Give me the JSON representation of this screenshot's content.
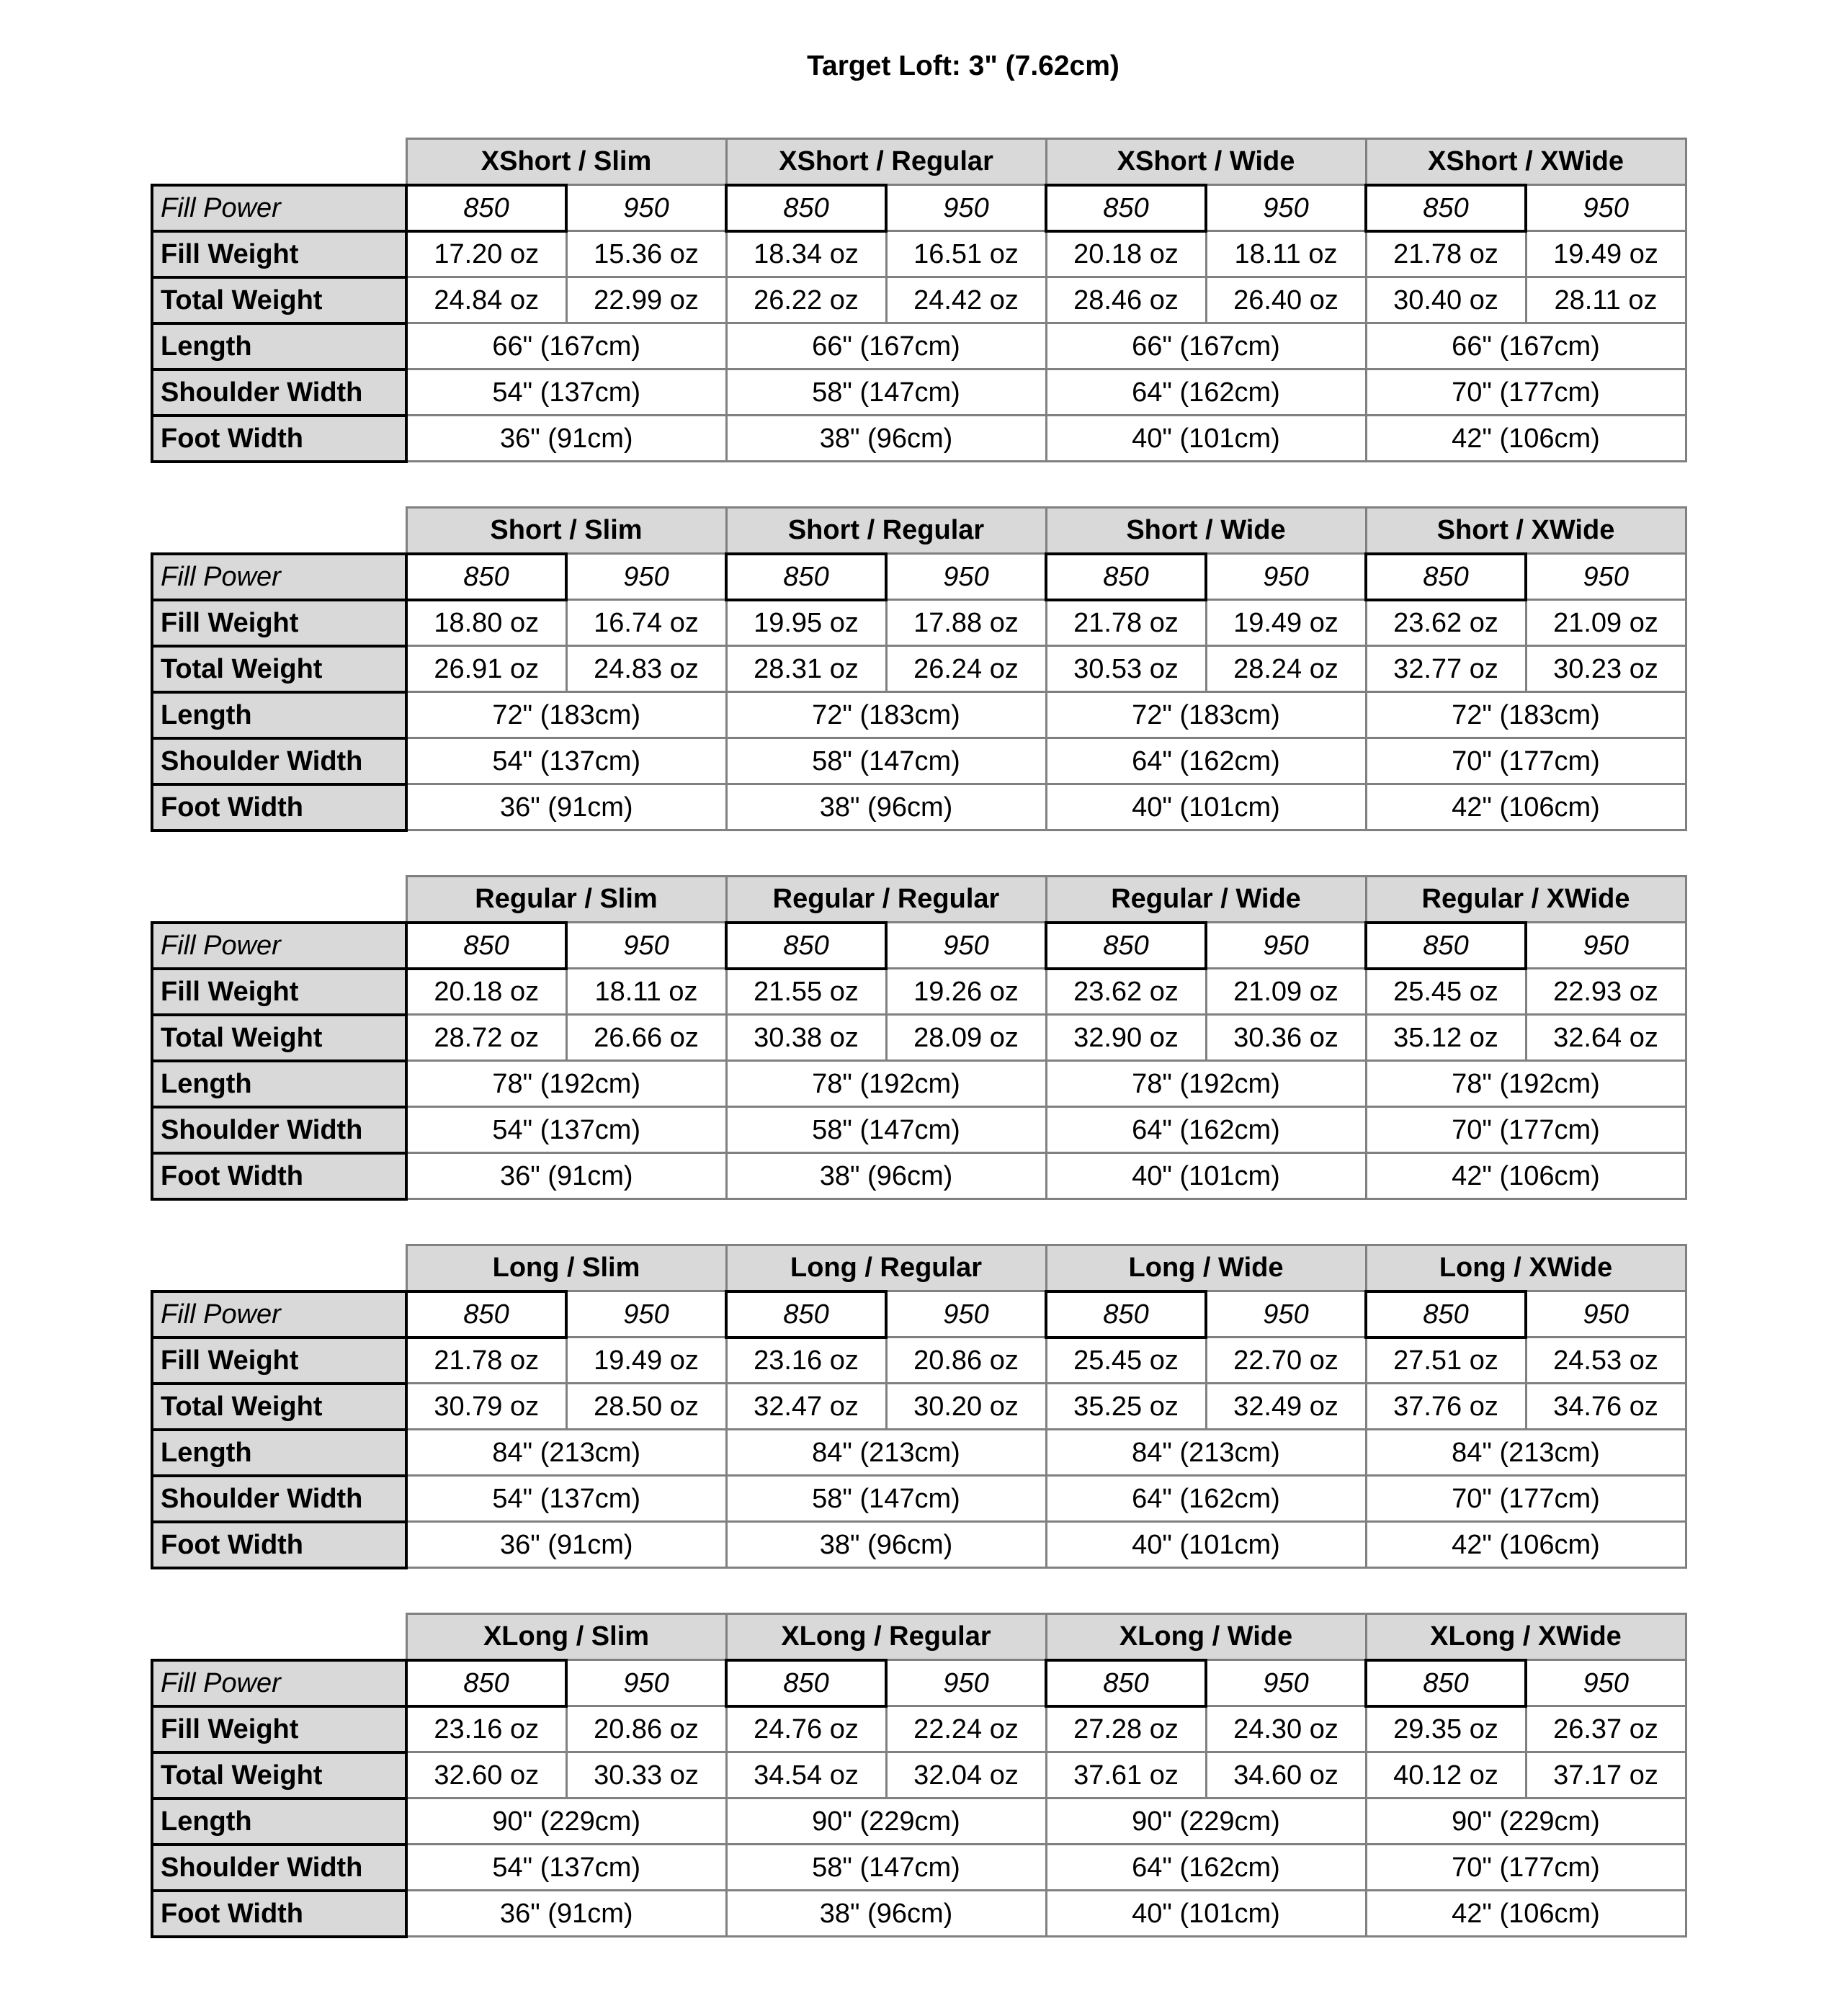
{
  "title": "Target Loft: 3\" (7.62cm)",
  "row_labels": {
    "fill_power": "Fill Power",
    "fill_weight": "Fill Weight",
    "total_weight": "Total Weight",
    "length": "Length",
    "shoulder_width": "Shoulder Width",
    "foot_width": "Foot Width"
  },
  "colors": {
    "header_fill": "#d9d9d9",
    "grid": "#808080",
    "label_border": "#000000"
  },
  "tables": [
    {
      "columns": [
        {
          "label": "XShort / Slim",
          "fill_power": [
            "850",
            "950"
          ],
          "fill_weight": [
            "17.20 oz",
            "15.36 oz"
          ],
          "total_weight": [
            "24.84 oz",
            "22.99 oz"
          ],
          "length": "66\" (167cm)",
          "shoulder_width": "54\" (137cm)",
          "foot_width": "36\" (91cm)"
        },
        {
          "label": "XShort / Regular",
          "fill_power": [
            "850",
            "950"
          ],
          "fill_weight": [
            "18.34 oz",
            "16.51 oz"
          ],
          "total_weight": [
            "26.22 oz",
            "24.42 oz"
          ],
          "length": "66\" (167cm)",
          "shoulder_width": "58\" (147cm)",
          "foot_width": "38\" (96cm)"
        },
        {
          "label": "XShort / Wide",
          "fill_power": [
            "850",
            "950"
          ],
          "fill_weight": [
            "20.18 oz",
            "18.11 oz"
          ],
          "total_weight": [
            "28.46 oz",
            "26.40 oz"
          ],
          "length": "66\" (167cm)",
          "shoulder_width": "64\" (162cm)",
          "foot_width": "40\" (101cm)"
        },
        {
          "label": "XShort / XWide",
          "fill_power": [
            "850",
            "950"
          ],
          "fill_weight": [
            "21.78 oz",
            "19.49 oz"
          ],
          "total_weight": [
            "30.40 oz",
            "28.11 oz"
          ],
          "length": "66\" (167cm)",
          "shoulder_width": "70\" (177cm)",
          "foot_width": "42\" (106cm)"
        }
      ]
    },
    {
      "columns": [
        {
          "label": "Short / Slim",
          "fill_power": [
            "850",
            "950"
          ],
          "fill_weight": [
            "18.80 oz",
            "16.74 oz"
          ],
          "total_weight": [
            "26.91 oz",
            "24.83 oz"
          ],
          "length": "72\" (183cm)",
          "shoulder_width": "54\" (137cm)",
          "foot_width": "36\" (91cm)"
        },
        {
          "label": "Short / Regular",
          "fill_power": [
            "850",
            "950"
          ],
          "fill_weight": [
            "19.95 oz",
            "17.88 oz"
          ],
          "total_weight": [
            "28.31 oz",
            "26.24 oz"
          ],
          "length": "72\" (183cm)",
          "shoulder_width": "58\" (147cm)",
          "foot_width": "38\" (96cm)"
        },
        {
          "label": "Short / Wide",
          "fill_power": [
            "850",
            "950"
          ],
          "fill_weight": [
            "21.78 oz",
            "19.49 oz"
          ],
          "total_weight": [
            "30.53 oz",
            "28.24 oz"
          ],
          "length": "72\" (183cm)",
          "shoulder_width": "64\" (162cm)",
          "foot_width": "40\" (101cm)"
        },
        {
          "label": "Short / XWide",
          "fill_power": [
            "850",
            "950"
          ],
          "fill_weight": [
            "23.62 oz",
            "21.09 oz"
          ],
          "total_weight": [
            "32.77 oz",
            "30.23 oz"
          ],
          "length": "72\" (183cm)",
          "shoulder_width": "70\" (177cm)",
          "foot_width": "42\" (106cm)"
        }
      ]
    },
    {
      "columns": [
        {
          "label": "Regular / Slim",
          "fill_power": [
            "850",
            "950"
          ],
          "fill_weight": [
            "20.18 oz",
            "18.11 oz"
          ],
          "total_weight": [
            "28.72 oz",
            "26.66 oz"
          ],
          "length": "78\" (192cm)",
          "shoulder_width": "54\" (137cm)",
          "foot_width": "36\" (91cm)"
        },
        {
          "label": "Regular / Regular",
          "fill_power": [
            "850",
            "950"
          ],
          "fill_weight": [
            "21.55 oz",
            "19.26 oz"
          ],
          "total_weight": [
            "30.38 oz",
            "28.09 oz"
          ],
          "length": "78\" (192cm)",
          "shoulder_width": "58\" (147cm)",
          "foot_width": "38\" (96cm)"
        },
        {
          "label": "Regular / Wide",
          "fill_power": [
            "850",
            "950"
          ],
          "fill_weight": [
            "23.62 oz",
            "21.09 oz"
          ],
          "total_weight": [
            "32.90 oz",
            "30.36 oz"
          ],
          "length": "78\" (192cm)",
          "shoulder_width": "64\" (162cm)",
          "foot_width": "40\" (101cm)"
        },
        {
          "label": "Regular / XWide",
          "fill_power": [
            "850",
            "950"
          ],
          "fill_weight": [
            "25.45 oz",
            "22.93 oz"
          ],
          "total_weight": [
            "35.12 oz",
            "32.64 oz"
          ],
          "length": "78\" (192cm)",
          "shoulder_width": "70\" (177cm)",
          "foot_width": "42\" (106cm)"
        }
      ]
    },
    {
      "columns": [
        {
          "label": "Long / Slim",
          "fill_power": [
            "850",
            "950"
          ],
          "fill_weight": [
            "21.78 oz",
            "19.49 oz"
          ],
          "total_weight": [
            "30.79 oz",
            "28.50 oz"
          ],
          "length": "84\" (213cm)",
          "shoulder_width": "54\" (137cm)",
          "foot_width": "36\" (91cm)"
        },
        {
          "label": "Long / Regular",
          "fill_power": [
            "850",
            "950"
          ],
          "fill_weight": [
            "23.16 oz",
            "20.86 oz"
          ],
          "total_weight": [
            "32.47 oz",
            "30.20 oz"
          ],
          "length": "84\" (213cm)",
          "shoulder_width": "58\" (147cm)",
          "foot_width": "38\" (96cm)"
        },
        {
          "label": "Long / Wide",
          "fill_power": [
            "850",
            "950"
          ],
          "fill_weight": [
            "25.45 oz",
            "22.70 oz"
          ],
          "total_weight": [
            "35.25 oz",
            "32.49 oz"
          ],
          "length": "84\" (213cm)",
          "shoulder_width": "64\" (162cm)",
          "foot_width": "40\" (101cm)"
        },
        {
          "label": "Long / XWide",
          "fill_power": [
            "850",
            "950"
          ],
          "fill_weight": [
            "27.51 oz",
            "24.53 oz"
          ],
          "total_weight": [
            "37.76 oz",
            "34.76 oz"
          ],
          "length": "84\" (213cm)",
          "shoulder_width": "70\" (177cm)",
          "foot_width": "42\" (106cm)"
        }
      ]
    },
    {
      "columns": [
        {
          "label": "XLong / Slim",
          "fill_power": [
            "850",
            "950"
          ],
          "fill_weight": [
            "23.16 oz",
            "20.86 oz"
          ],
          "total_weight": [
            "32.60 oz",
            "30.33 oz"
          ],
          "length": "90\" (229cm)",
          "shoulder_width": "54\" (137cm)",
          "foot_width": "36\" (91cm)"
        },
        {
          "label": "XLong / Regular",
          "fill_power": [
            "850",
            "950"
          ],
          "fill_weight": [
            "24.76 oz",
            "22.24 oz"
          ],
          "total_weight": [
            "34.54 oz",
            "32.04 oz"
          ],
          "length": "90\" (229cm)",
          "shoulder_width": "58\" (147cm)",
          "foot_width": "38\" (96cm)"
        },
        {
          "label": "XLong / Wide",
          "fill_power": [
            "850",
            "950"
          ],
          "fill_weight": [
            "27.28 oz",
            "24.30 oz"
          ],
          "total_weight": [
            "37.61 oz",
            "34.60 oz"
          ],
          "length": "90\" (229cm)",
          "shoulder_width": "64\" (162cm)",
          "foot_width": "40\" (101cm)"
        },
        {
          "label": "XLong / XWide",
          "fill_power": [
            "850",
            "950"
          ],
          "fill_weight": [
            "29.35 oz",
            "26.37 oz"
          ],
          "total_weight": [
            "40.12 oz",
            "37.17 oz"
          ],
          "length": "90\" (229cm)",
          "shoulder_width": "70\" (177cm)",
          "foot_width": "42\" (106cm)"
        }
      ]
    }
  ]
}
